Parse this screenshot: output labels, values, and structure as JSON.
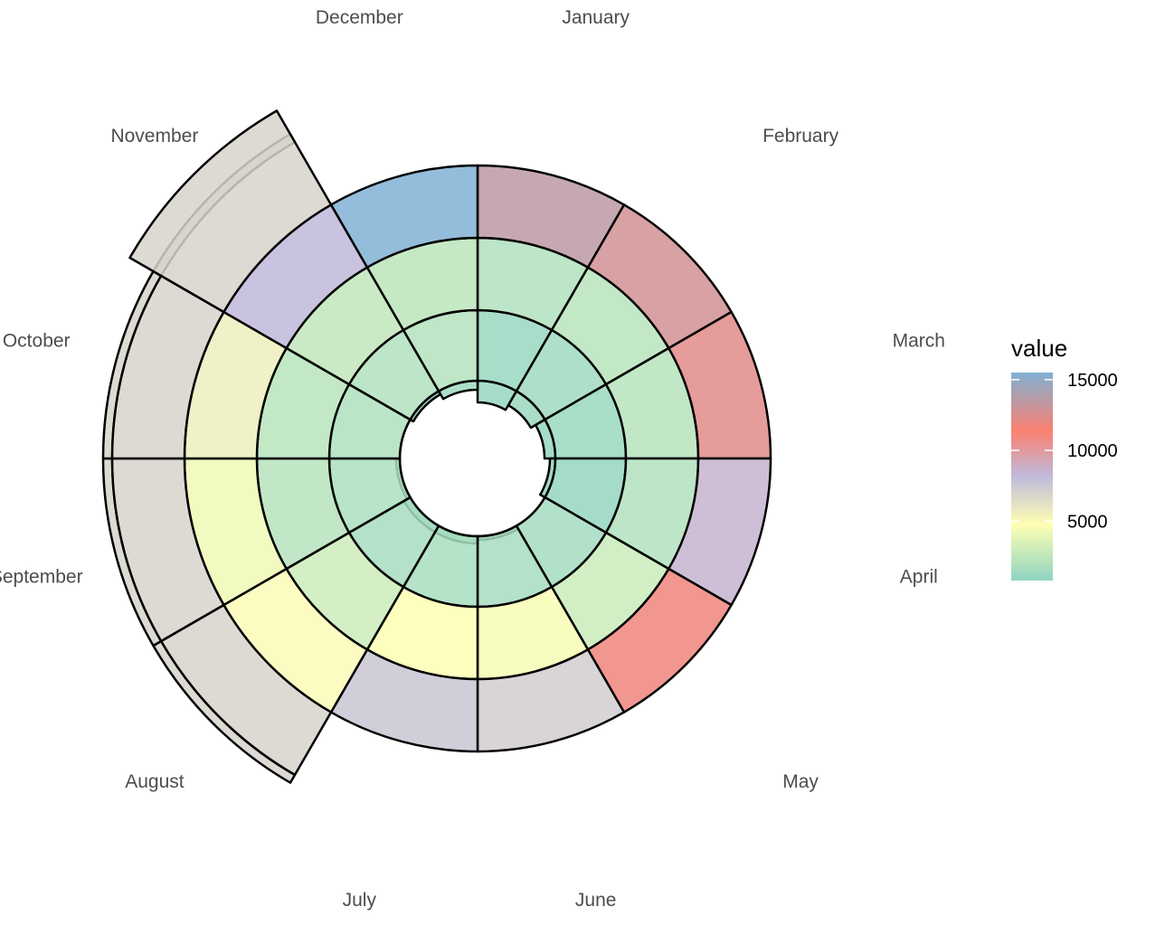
{
  "chart_data": {
    "type": "radial-stacked-bar",
    "months": [
      "January",
      "February",
      "March",
      "April",
      "May",
      "June",
      "July",
      "August",
      "September",
      "October",
      "November",
      "December"
    ],
    "rings": [
      {
        "name": "ring1",
        "values": [
          1050,
          1200,
          950,
          800,
          900,
          1000,
          950,
          1050,
          1000,
          900,
          1100,
          1300
        ]
      },
      {
        "name": "ring2",
        "values": [
          1150,
          1400,
          1200,
          1000,
          1500,
          1600,
          1700,
          1600,
          1800,
          1900,
          2000,
          2100
        ]
      },
      {
        "name": "ring3",
        "values": [
          2000,
          2300,
          2200,
          2000,
          2900,
          4500,
          4800,
          3000,
          2200,
          2300,
          2500,
          2400
        ]
      },
      {
        "name": "ring4",
        "values": [
          13500,
          12800,
          12300,
          8500,
          11800,
          7200,
          7600,
          5000,
          4200,
          5600,
          8200,
          15500
        ]
      },
      {
        "name": "ring5",
        "values": [
          null,
          null,
          null,
          null,
          null,
          null,
          null,
          6900,
          6900,
          6900,
          6900,
          null
        ]
      }
    ],
    "legend": {
      "title": "value",
      "ticks": [
        "15000",
        "10000",
        "5000"
      ],
      "tick_values": [
        15000,
        10000,
        5000
      ],
      "range": [
        800,
        15500
      ],
      "colors": [
        "#8fd4c1",
        "#ffffb3",
        "#bfbadb",
        "#fb8072",
        "#80b1d3"
      ]
    }
  }
}
